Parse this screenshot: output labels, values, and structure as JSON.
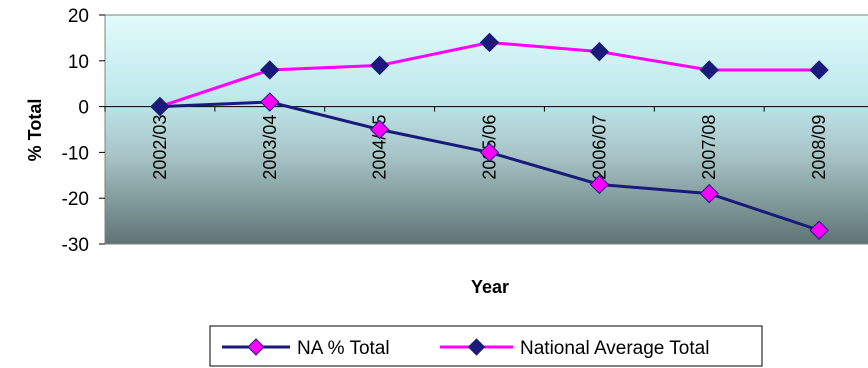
{
  "chart_data": {
    "type": "line",
    "title": "",
    "xlabel": "Year",
    "ylabel": "% Total",
    "ylim": [
      -30,
      20
    ],
    "yticks": [
      20,
      10,
      0,
      -10,
      -20,
      -30
    ],
    "categories": [
      "2002/03",
      "2003/04",
      "2004/05",
      "2005/06",
      "2006/07",
      "2007/08",
      "2008/09"
    ],
    "series": [
      {
        "name": "NA % Total",
        "values": [
          0,
          1,
          -5,
          -10,
          -17,
          -19,
          -27
        ],
        "line_color": "#1a1a7a",
        "marker": "diamond",
        "marker_color": "#ff00ff"
      },
      {
        "name": "National Average Total",
        "values": [
          0,
          8,
          9,
          14,
          12,
          8,
          8
        ],
        "line_color": "#ff00ff",
        "marker": "diamond",
        "marker_color": "#1a1a7a"
      }
    ],
    "legend_position": "bottom",
    "plot_background": "gradient light cyan to dark slate"
  }
}
